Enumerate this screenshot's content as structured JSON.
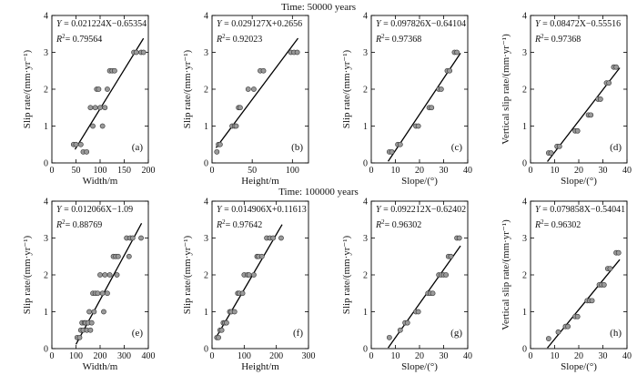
{
  "rows": [
    {
      "title": "Time: 50000 years"
    },
    {
      "title": "Time: 100000 years"
    }
  ],
  "chart_data": [
    {
      "type": "scatter",
      "label": "(a)",
      "xlabel": "Width/m",
      "ylabel": "Slip rate/(mm·yr⁻¹)",
      "xlim": [
        0,
        200
      ],
      "xticks": [
        0,
        50,
        100,
        150,
        200
      ],
      "ylim": [
        0,
        4
      ],
      "yticks": [
        0,
        1,
        2,
        3,
        4
      ],
      "eq_prefix": "Y",
      "eq_body": " = 0.021224X−0.65354",
      "r2": "= 0.79564",
      "fit": {
        "slope": 0.021224,
        "intercept": -0.65354,
        "x0": 48,
        "x1": 190
      },
      "points": [
        [
          45,
          0.5
        ],
        [
          50,
          0.5
        ],
        [
          60,
          0.5
        ],
        [
          65,
          0.3
        ],
        [
          72,
          0.3
        ],
        [
          80,
          1.5
        ],
        [
          85,
          1.0
        ],
        [
          90,
          1.5
        ],
        [
          93,
          2.0
        ],
        [
          97,
          2.0
        ],
        [
          100,
          1.5
        ],
        [
          105,
          1.0
        ],
        [
          110,
          1.5
        ],
        [
          115,
          2.0
        ],
        [
          120,
          2.5
        ],
        [
          125,
          2.5
        ],
        [
          130,
          2.5
        ],
        [
          170,
          3.0
        ],
        [
          175,
          3.0
        ],
        [
          185,
          3.0
        ],
        [
          190,
          3.0
        ]
      ]
    },
    {
      "type": "scatter",
      "label": "(b)",
      "xlabel": "Height/m",
      "ylabel": "Slip rate/(mm·yr⁻¹)",
      "xlim": [
        0,
        120
      ],
      "xticks": [
        0,
        50,
        100
      ],
      "ylim": [
        0,
        4
      ],
      "yticks": [
        0,
        1,
        2,
        3,
        4
      ],
      "eq_prefix": "Y",
      "eq_body": " = 0.029127X+0.2656",
      "r2": "= 0.92023",
      "fit": {
        "slope": 0.029127,
        "intercept": 0.2656,
        "x0": 5,
        "x1": 107
      },
      "points": [
        [
          6,
          0.3
        ],
        [
          8,
          0.5
        ],
        [
          10,
          0.5
        ],
        [
          25,
          1.0
        ],
        [
          28,
          1.0
        ],
        [
          30,
          1.0
        ],
        [
          33,
          1.5
        ],
        [
          35,
          1.5
        ],
        [
          45,
          2.0
        ],
        [
          52,
          2.0
        ],
        [
          60,
          2.5
        ],
        [
          64,
          2.5
        ],
        [
          98,
          3.0
        ],
        [
          102,
          3.0
        ],
        [
          106,
          3.0
        ]
      ]
    },
    {
      "type": "scatter",
      "label": "(c)",
      "xlabel": "Slope/(°)",
      "ylabel": "Slip rate/(mm·yr⁻¹)",
      "xlim": [
        0,
        40
      ],
      "xticks": [
        0,
        10,
        20,
        30,
        40
      ],
      "ylim": [
        0,
        4
      ],
      "yticks": [
        0,
        1,
        2,
        3,
        4
      ],
      "eq_prefix": "Y",
      "eq_body": " = 0.097826X−0.64104",
      "r2": "= 0.97368",
      "fit": {
        "slope": 0.097826,
        "intercept": -0.64104,
        "x0": 7,
        "x1": 37
      },
      "points": [
        [
          7.5,
          0.3
        ],
        [
          8.5,
          0.3
        ],
        [
          11,
          0.5
        ],
        [
          12,
          0.5
        ],
        [
          18.5,
          1.0
        ],
        [
          19.5,
          1.0
        ],
        [
          24,
          1.5
        ],
        [
          25,
          1.5
        ],
        [
          28,
          2.0
        ],
        [
          29,
          2.0
        ],
        [
          31.5,
          2.5
        ],
        [
          32.5,
          2.5
        ],
        [
          34.5,
          3.0
        ],
        [
          35.5,
          3.0
        ]
      ]
    },
    {
      "type": "scatter",
      "label": "(d)",
      "xlabel": "Slope/(°)",
      "ylabel": "Vertical slip rate/(mm·yr⁻¹)",
      "xlim": [
        0,
        40
      ],
      "xticks": [
        0,
        10,
        20,
        30,
        40
      ],
      "ylim": [
        0,
        4
      ],
      "yticks": [
        0,
        1,
        2,
        3,
        4
      ],
      "eq_prefix": "Y",
      "eq_body": " = 0.08472X−0.55516",
      "r2": "= 0.97368",
      "fit": {
        "slope": 0.08472,
        "intercept": -0.55516,
        "x0": 7,
        "x1": 37
      },
      "points": [
        [
          7.5,
          0.27
        ],
        [
          8.5,
          0.27
        ],
        [
          11,
          0.45
        ],
        [
          12,
          0.45
        ],
        [
          18.5,
          0.87
        ],
        [
          19.5,
          0.87
        ],
        [
          24,
          1.3
        ],
        [
          25,
          1.3
        ],
        [
          28,
          1.73
        ],
        [
          29,
          1.73
        ],
        [
          31.5,
          2.17
        ],
        [
          32.5,
          2.17
        ],
        [
          34.5,
          2.6
        ],
        [
          35.5,
          2.6
        ]
      ]
    },
    {
      "type": "scatter",
      "label": "(e)",
      "xlabel": "Width/m",
      "ylabel": "Slip rate/(mm·yr⁻¹)",
      "xlim": [
        0,
        400
      ],
      "xticks": [
        0,
        100,
        200,
        300,
        400
      ],
      "ylim": [
        0,
        4
      ],
      "yticks": [
        0,
        1,
        2,
        3,
        4
      ],
      "eq_prefix": "Y",
      "eq_body": " = 0.012066X−1.09",
      "r2": "= 0.88769",
      "fit": {
        "slope": 0.012066,
        "intercept": -1.09,
        "x0": 100,
        "x1": 372
      },
      "points": [
        [
          105,
          0.3
        ],
        [
          115,
          0.3
        ],
        [
          120,
          0.5
        ],
        [
          125,
          0.7
        ],
        [
          130,
          0.5
        ],
        [
          135,
          0.7
        ],
        [
          140,
          0.7
        ],
        [
          145,
          0.5
        ],
        [
          150,
          0.7
        ],
        [
          155,
          1.0
        ],
        [
          160,
          0.5
        ],
        [
          165,
          0.7
        ],
        [
          170,
          1.5
        ],
        [
          175,
          1.0
        ],
        [
          180,
          1.5
        ],
        [
          190,
          1.5
        ],
        [
          200,
          2.0
        ],
        [
          210,
          1.5
        ],
        [
          215,
          1.0
        ],
        [
          220,
          2.0
        ],
        [
          230,
          1.5
        ],
        [
          240,
          2.0
        ],
        [
          255,
          2.5
        ],
        [
          265,
          2.5
        ],
        [
          270,
          2.0
        ],
        [
          275,
          2.5
        ],
        [
          310,
          3.0
        ],
        [
          320,
          2.5
        ],
        [
          325,
          3.0
        ],
        [
          335,
          3.0
        ],
        [
          370,
          3.0
        ]
      ]
    },
    {
      "type": "scatter",
      "label": "(f)",
      "xlabel": "Height/m",
      "ylabel": "Slip rate/(mm·yr⁻¹)",
      "xlim": [
        0,
        300
      ],
      "xticks": [
        0,
        100,
        200,
        300
      ],
      "ylim": [
        0,
        4
      ],
      "yticks": [
        0,
        1,
        2,
        3,
        4
      ],
      "eq_prefix": "Y",
      "eq_body": " = 0.014906X+0.11613",
      "r2": "= 0.97642",
      "fit": {
        "slope": 0.014906,
        "intercept": 0.11613,
        "x0": 12,
        "x1": 218
      },
      "points": [
        [
          15,
          0.3
        ],
        [
          20,
          0.3
        ],
        [
          25,
          0.5
        ],
        [
          30,
          0.5
        ],
        [
          35,
          0.7
        ],
        [
          40,
          0.7
        ],
        [
          45,
          0.7
        ],
        [
          55,
          1.0
        ],
        [
          60,
          1.0
        ],
        [
          70,
          1.0
        ],
        [
          80,
          1.5
        ],
        [
          85,
          1.5
        ],
        [
          95,
          1.5
        ],
        [
          100,
          2.0
        ],
        [
          110,
          2.0
        ],
        [
          115,
          2.0
        ],
        [
          130,
          2.0
        ],
        [
          140,
          2.5
        ],
        [
          145,
          2.5
        ],
        [
          155,
          2.5
        ],
        [
          170,
          3.0
        ],
        [
          180,
          3.0
        ],
        [
          190,
          3.0
        ],
        [
          215,
          3.0
        ]
      ]
    },
    {
      "type": "scatter",
      "label": "(g)",
      "xlabel": "Slope/(°)",
      "ylabel": "Slip rate/(mm·yr⁻¹)",
      "xlim": [
        0,
        40
      ],
      "xticks": [
        0,
        10,
        20,
        30,
        40
      ],
      "ylim": [
        0,
        4
      ],
      "yticks": [
        0,
        1,
        2,
        3,
        4
      ],
      "eq_prefix": "Y",
      "eq_body": " = 0.092212X−0.62402",
      "r2": "= 0.96302",
      "fit": {
        "slope": 0.092212,
        "intercept": -0.62402,
        "x0": 7,
        "x1": 37
      },
      "points": [
        [
          7.5,
          0.3
        ],
        [
          12,
          0.5
        ],
        [
          14,
          0.7
        ],
        [
          15,
          0.7
        ],
        [
          18.5,
          1.0
        ],
        [
          19.5,
          1.0
        ],
        [
          23.5,
          1.5
        ],
        [
          24.5,
          1.5
        ],
        [
          25.5,
          1.5
        ],
        [
          28,
          2.0
        ],
        [
          29,
          2.0
        ],
        [
          30,
          2.0
        ],
        [
          31,
          2.0
        ],
        [
          32,
          2.5
        ],
        [
          33,
          2.5
        ],
        [
          35.5,
          3.0
        ],
        [
          36.5,
          3.0
        ]
      ]
    },
    {
      "type": "scatter",
      "label": "(h)",
      "xlabel": "Slope/(°)",
      "ylabel": "Vertical slip rate/(mm·yr⁻¹)",
      "xlim": [
        0,
        40
      ],
      "xticks": [
        0,
        10,
        20,
        30,
        40
      ],
      "ylim": [
        0,
        4
      ],
      "yticks": [
        0,
        1,
        2,
        3,
        4
      ],
      "eq_prefix": "Y",
      "eq_body": " = 0.079858X−0.54041",
      "r2": "= 0.96302",
      "fit": {
        "slope": 0.079858,
        "intercept": -0.54041,
        "x0": 7,
        "x1": 37
      },
      "points": [
        [
          7.5,
          0.27
        ],
        [
          11.5,
          0.45
        ],
        [
          14.5,
          0.6
        ],
        [
          15.5,
          0.6
        ],
        [
          18.5,
          0.87
        ],
        [
          19.5,
          0.87
        ],
        [
          23.5,
          1.3
        ],
        [
          24.5,
          1.3
        ],
        [
          25.5,
          1.3
        ],
        [
          28.5,
          1.73
        ],
        [
          29.5,
          1.73
        ],
        [
          30.5,
          1.73
        ],
        [
          32,
          2.17
        ],
        [
          33,
          2.17
        ],
        [
          35.5,
          2.6
        ],
        [
          36.5,
          2.6
        ]
      ]
    }
  ]
}
